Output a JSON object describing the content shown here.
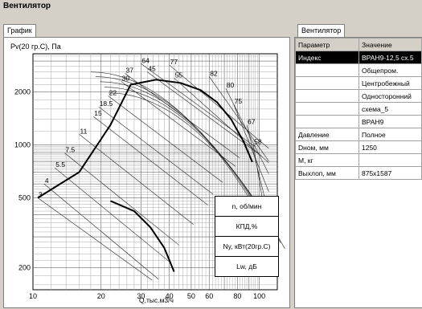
{
  "window": {
    "title": "Вентилятор"
  },
  "tabs": {
    "chart_tab": "График",
    "props_tab": "Вентилятор"
  },
  "chart": {
    "ylabel": "Pv(20 гр.С), Па",
    "xlabel": "Q,тыс.м3/ч",
    "x_ticks": [
      "10",
      "20",
      "30",
      "40",
      "50",
      "60",
      "80",
      "100"
    ],
    "y_ticks": [
      "2000",
      "1000",
      "500",
      "200"
    ],
    "legend": [
      "n, об/мин",
      "КПД,%",
      "Ny, кВт(20гр.С)",
      "Lw, дБ"
    ]
  },
  "chart_data": {
    "type": "line",
    "title": "",
    "xlabel": "Q,тыс.м3/ч",
    "ylabel": "Pv(20 гр.С), Па",
    "x_scale": "log",
    "y_scale": "log",
    "xlim": [
      10,
      120
    ],
    "ylim": [
      150,
      3300
    ],
    "grid": true,
    "x_ticks": [
      10,
      20,
      30,
      40,
      50,
      60,
      80,
      100
    ],
    "y_ticks": [
      200,
      500,
      1000,
      2000
    ],
    "power_labels": [
      {
        "label": "3",
        "x": 10.5,
        "y": 500
      },
      {
        "label": "4",
        "x": 11.2,
        "y": 600
      },
      {
        "label": "5.5",
        "x": 12.5,
        "y": 740
      },
      {
        "label": "7.5",
        "x": 13.8,
        "y": 900
      },
      {
        "label": "11",
        "x": 16,
        "y": 1150
      },
      {
        "label": "15",
        "x": 18.5,
        "y": 1450
      },
      {
        "label": "18.5",
        "x": 19.5,
        "y": 1650
      },
      {
        "label": "22",
        "x": 21.5,
        "y": 1900
      },
      {
        "label": "30",
        "x": 24.5,
        "y": 2300
      },
      {
        "label": "37",
        "x": 25.5,
        "y": 2550
      },
      {
        "label": "45",
        "x": 32,
        "y": 2600
      },
      {
        "label": "55",
        "x": 42,
        "y": 2400
      },
      {
        "label": "64",
        "x": 30,
        "y": 2900
      },
      {
        "label": "77",
        "x": 40,
        "y": 2850
      },
      {
        "label": "82",
        "x": 60,
        "y": 2450
      },
      {
        "label": "80",
        "x": 71,
        "y": 2100
      },
      {
        "label": "75",
        "x": 77,
        "y": 1700
      },
      {
        "label": "67",
        "x": 88,
        "y": 1300
      },
      {
        "label": "58",
        "x": 94,
        "y": 1000
      }
    ],
    "performance_curve": [
      [
        10.5,
        500
      ],
      [
        16,
        700
      ],
      [
        22,
        1300
      ],
      [
        27,
        2200
      ],
      [
        35,
        2350
      ],
      [
        45,
        2250
      ],
      [
        55,
        2050
      ],
      [
        65,
        1750
      ],
      [
        75,
        1400
      ],
      [
        85,
        1050
      ],
      [
        93,
        800
      ]
    ],
    "system_curve": [
      [
        22,
        480
      ],
      [
        28,
        420
      ],
      [
        33,
        340
      ],
      [
        38,
        260
      ],
      [
        42,
        190
      ]
    ]
  },
  "table": {
    "headers": [
      "Параметр",
      "Значение"
    ],
    "rows": [
      [
        "Индекс",
        "ВРАН9-12,5 сх.5"
      ],
      [
        "",
        "Общепром."
      ],
      [
        "",
        "Центробежный"
      ],
      [
        "",
        "Односторонний"
      ],
      [
        "",
        "схема_5"
      ],
      [
        "",
        "ВРАН9"
      ],
      [
        "Давление",
        "Полное"
      ],
      [
        "Dном, мм",
        "1250"
      ],
      [
        "M, кг",
        ""
      ],
      [
        "Выхлоп, мм",
        "875х1587"
      ]
    ]
  }
}
